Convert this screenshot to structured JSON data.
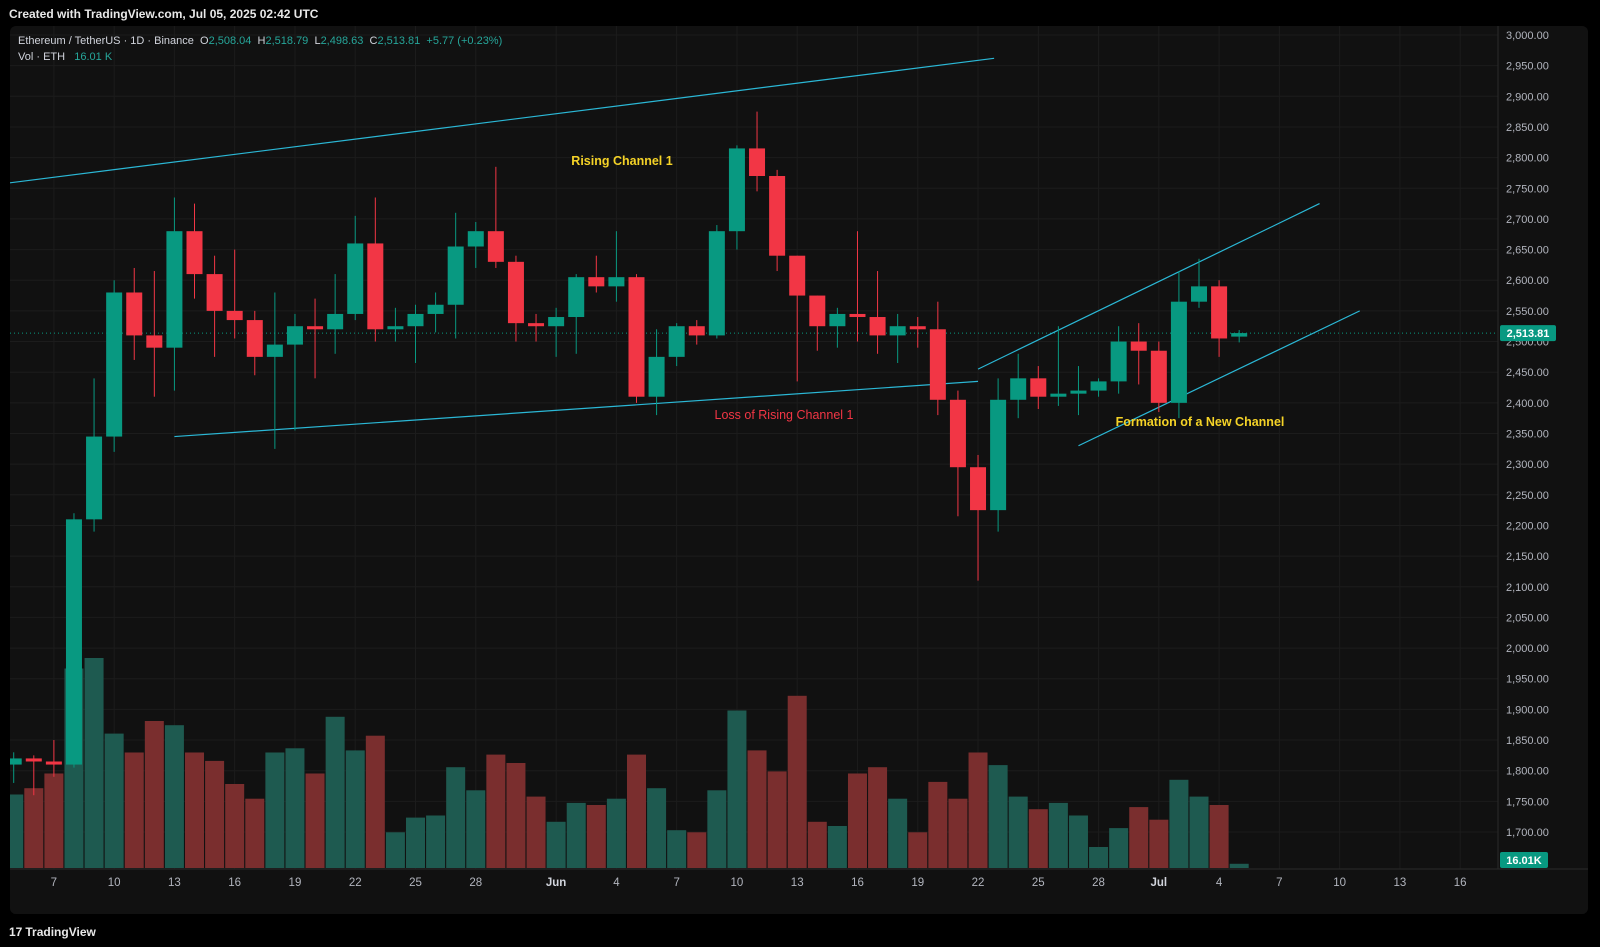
{
  "header": {
    "created_with": "Created with TradingView.com, Jul 05, 2025 02:42 UTC"
  },
  "legend": {
    "symbol": "Ethereum / TetherUS · 1D · Binance",
    "open_key": "O",
    "open": "2,508.04",
    "high_key": "H",
    "high": "2,518.79",
    "low_key": "L",
    "low": "2,498.63",
    "close_key": "C",
    "close": "2,513.81",
    "change": "+5.77 (+0.23%)",
    "vol_label": "Vol · ETH",
    "vol_value": "16.01 K"
  },
  "footer": {
    "logo_text": "TradingView",
    "logo_mark": "17"
  },
  "colors": {
    "up": "#089981",
    "down": "#f23645",
    "vol_up": "#1e5a50",
    "vol_down": "#7a2e2e",
    "channel": "#2bb8d6",
    "annotation_yellow": "#f5d327",
    "annotation_red": "#f23645",
    "background": "#111111",
    "price_tag": "#089981"
  },
  "chart_data": {
    "type": "candlestick",
    "price_axis": {
      "ylim": [
        1650,
        3020
      ],
      "ticks": [
        3000,
        2950,
        2900,
        2850,
        2800,
        2750,
        2700,
        2650,
        2600,
        2550,
        2500,
        2450,
        2400,
        2350,
        2300,
        2250,
        2200,
        2150,
        2100,
        2050,
        2000,
        1950,
        1900,
        1850,
        1800,
        1750,
        1700
      ],
      "tick_labels": [
        "3,000.00",
        "2,950.00",
        "2,900.00",
        "2,850.00",
        "2,800.00",
        "2,750.00",
        "2,700.00",
        "2,650.00",
        "2,600.00",
        "2,550.00",
        "2,500.00",
        "2,450.00",
        "2,400.00",
        "2,350.00",
        "2,300.00",
        "2,250.00",
        "2,200.00",
        "2,150.00",
        "2,100.00",
        "2,050.00",
        "2,000.00",
        "1,950.00",
        "1,900.00",
        "1,850.00",
        "1,800.00",
        "1,750.00",
        "1,700.00"
      ],
      "last_price": 2513.81,
      "last_price_label": "2,513.81",
      "grid": true
    },
    "time_axis": {
      "tick_labels": [
        "7",
        "10",
        "13",
        "16",
        "19",
        "22",
        "25",
        "28",
        "Jun",
        "4",
        "7",
        "10",
        "13",
        "16",
        "19",
        "22",
        "25",
        "28",
        "Jul",
        "4",
        "7",
        "10",
        "13",
        "16"
      ],
      "tick_index": [
        2,
        5,
        8,
        11,
        14,
        17,
        20,
        23,
        27,
        30,
        33,
        36,
        39,
        42,
        45,
        48,
        51,
        54,
        57,
        60,
        63,
        66,
        69,
        72
      ]
    },
    "candles": [
      {
        "date": "May 5",
        "o": 1810,
        "h": 1830,
        "l": 1780,
        "c": 1820
      },
      {
        "date": "May 6",
        "o": 1820,
        "h": 1825,
        "l": 1760,
        "c": 1815
      },
      {
        "date": "May 7",
        "o": 1815,
        "h": 1850,
        "l": 1790,
        "c": 1810
      },
      {
        "date": "May 8",
        "o": 1810,
        "h": 2220,
        "l": 1805,
        "c": 2210
      },
      {
        "date": "May 9",
        "o": 2210,
        "h": 2440,
        "l": 2190,
        "c": 2345
      },
      {
        "date": "May 10",
        "o": 2345,
        "h": 2600,
        "l": 2320,
        "c": 2580
      },
      {
        "date": "May 11",
        "o": 2580,
        "h": 2620,
        "l": 2470,
        "c": 2510
      },
      {
        "date": "May 12",
        "o": 2510,
        "h": 2615,
        "l": 2410,
        "c": 2490
      },
      {
        "date": "May 13",
        "o": 2490,
        "h": 2735,
        "l": 2420,
        "c": 2680
      },
      {
        "date": "May 14",
        "o": 2680,
        "h": 2725,
        "l": 2570,
        "c": 2610
      },
      {
        "date": "May 15",
        "o": 2610,
        "h": 2640,
        "l": 2475,
        "c": 2550
      },
      {
        "date": "May 16",
        "o": 2550,
        "h": 2650,
        "l": 2505,
        "c": 2535
      },
      {
        "date": "May 17",
        "o": 2535,
        "h": 2550,
        "l": 2445,
        "c": 2475
      },
      {
        "date": "May 18",
        "o": 2475,
        "h": 2580,
        "l": 2325,
        "c": 2495
      },
      {
        "date": "May 19",
        "o": 2495,
        "h": 2545,
        "l": 2355,
        "c": 2525
      },
      {
        "date": "May 20",
        "o": 2525,
        "h": 2570,
        "l": 2440,
        "c": 2520
      },
      {
        "date": "May 21",
        "o": 2520,
        "h": 2610,
        "l": 2480,
        "c": 2545
      },
      {
        "date": "May 22",
        "o": 2545,
        "h": 2705,
        "l": 2535,
        "c": 2660
      },
      {
        "date": "May 23",
        "o": 2660,
        "h": 2735,
        "l": 2500,
        "c": 2520
      },
      {
        "date": "May 24",
        "o": 2520,
        "h": 2555,
        "l": 2500,
        "c": 2525
      },
      {
        "date": "May 25",
        "o": 2525,
        "h": 2560,
        "l": 2465,
        "c": 2545
      },
      {
        "date": "May 26",
        "o": 2545,
        "h": 2580,
        "l": 2515,
        "c": 2560
      },
      {
        "date": "May 27",
        "o": 2560,
        "h": 2710,
        "l": 2505,
        "c": 2655
      },
      {
        "date": "May 28",
        "o": 2655,
        "h": 2695,
        "l": 2620,
        "c": 2680
      },
      {
        "date": "May 29",
        "o": 2680,
        "h": 2785,
        "l": 2620,
        "c": 2630
      },
      {
        "date": "May 30",
        "o": 2630,
        "h": 2640,
        "l": 2500,
        "c": 2530
      },
      {
        "date": "May 31",
        "o": 2530,
        "h": 2545,
        "l": 2500,
        "c": 2525
      },
      {
        "date": "Jun 1",
        "o": 2525,
        "h": 2555,
        "l": 2475,
        "c": 2540
      },
      {
        "date": "Jun 2",
        "o": 2540,
        "h": 2610,
        "l": 2480,
        "c": 2605
      },
      {
        "date": "Jun 3",
        "o": 2605,
        "h": 2640,
        "l": 2580,
        "c": 2590
      },
      {
        "date": "Jun 4",
        "o": 2590,
        "h": 2680,
        "l": 2565,
        "c": 2605
      },
      {
        "date": "Jun 5",
        "o": 2605,
        "h": 2610,
        "l": 2400,
        "c": 2410
      },
      {
        "date": "Jun 6",
        "o": 2410,
        "h": 2520,
        "l": 2380,
        "c": 2475
      },
      {
        "date": "Jun 7",
        "o": 2475,
        "h": 2530,
        "l": 2460,
        "c": 2525
      },
      {
        "date": "Jun 8",
        "o": 2525,
        "h": 2535,
        "l": 2495,
        "c": 2510
      },
      {
        "date": "Jun 9",
        "o": 2510,
        "h": 2690,
        "l": 2505,
        "c": 2680
      },
      {
        "date": "Jun 10",
        "o": 2680,
        "h": 2820,
        "l": 2650,
        "c": 2815
      },
      {
        "date": "Jun 11",
        "o": 2815,
        "h": 2875,
        "l": 2745,
        "c": 2770
      },
      {
        "date": "Jun 12",
        "o": 2770,
        "h": 2780,
        "l": 2615,
        "c": 2640
      },
      {
        "date": "Jun 13",
        "o": 2640,
        "h": 2640,
        "l": 2435,
        "c": 2575
      },
      {
        "date": "Jun 14",
        "o": 2575,
        "h": 2575,
        "l": 2485,
        "c": 2525
      },
      {
        "date": "Jun 15",
        "o": 2525,
        "h": 2555,
        "l": 2490,
        "c": 2545
      },
      {
        "date": "Jun 16",
        "o": 2545,
        "h": 2680,
        "l": 2500,
        "c": 2540
      },
      {
        "date": "Jun 17",
        "o": 2540,
        "h": 2615,
        "l": 2480,
        "c": 2510
      },
      {
        "date": "Jun 18",
        "o": 2510,
        "h": 2545,
        "l": 2465,
        "c": 2525
      },
      {
        "date": "Jun 19",
        "o": 2525,
        "h": 2540,
        "l": 2490,
        "c": 2520
      },
      {
        "date": "Jun 20",
        "o": 2520,
        "h": 2565,
        "l": 2380,
        "c": 2405
      },
      {
        "date": "Jun 21",
        "o": 2405,
        "h": 2420,
        "l": 2215,
        "c": 2295
      },
      {
        "date": "Jun 22",
        "o": 2295,
        "h": 2315,
        "l": 2110,
        "c": 2225
      },
      {
        "date": "Jun 23",
        "o": 2225,
        "h": 2440,
        "l": 2190,
        "c": 2405
      },
      {
        "date": "Jun 24",
        "o": 2405,
        "h": 2480,
        "l": 2375,
        "c": 2440
      },
      {
        "date": "Jun 25",
        "o": 2440,
        "h": 2460,
        "l": 2390,
        "c": 2410
      },
      {
        "date": "Jun 26",
        "o": 2410,
        "h": 2525,
        "l": 2395,
        "c": 2415
      },
      {
        "date": "Jun 27",
        "o": 2415,
        "h": 2460,
        "l": 2380,
        "c": 2420
      },
      {
        "date": "Jun 28",
        "o": 2420,
        "h": 2440,
        "l": 2410,
        "c": 2435
      },
      {
        "date": "Jun 29",
        "o": 2435,
        "h": 2525,
        "l": 2415,
        "c": 2500
      },
      {
        "date": "Jun 30",
        "o": 2500,
        "h": 2530,
        "l": 2430,
        "c": 2485
      },
      {
        "date": "Jul 1",
        "o": 2485,
        "h": 2500,
        "l": 2385,
        "c": 2400
      },
      {
        "date": "Jul 2",
        "o": 2400,
        "h": 2615,
        "l": 2375,
        "c": 2565
      },
      {
        "date": "Jul 3",
        "o": 2565,
        "h": 2635,
        "l": 2555,
        "c": 2590
      },
      {
        "date": "Jul 4",
        "o": 2590,
        "h": 2600,
        "l": 2475,
        "c": 2505
      },
      {
        "date": "Jul 5",
        "o": 2508.04,
        "h": 2518.79,
        "l": 2498.63,
        "c": 2513.81
      }
    ],
    "volume": {
      "label": "Vol · ETH",
      "last_label": "16.01K",
      "relative": [
        0.35,
        0.38,
        0.45,
        0.95,
        1.0,
        0.64,
        0.55,
        0.7,
        0.68,
        0.55,
        0.51,
        0.4,
        0.33,
        0.55,
        0.57,
        0.45,
        0.72,
        0.56,
        0.63,
        0.17,
        0.24,
        0.25,
        0.48,
        0.37,
        0.54,
        0.5,
        0.34,
        0.22,
        0.31,
        0.3,
        0.33,
        0.54,
        0.38,
        0.18,
        0.17,
        0.37,
        0.75,
        0.56,
        0.46,
        0.82,
        0.22,
        0.2,
        0.45,
        0.48,
        0.33,
        0.17,
        0.41,
        0.33,
        0.55,
        0.49,
        0.34,
        0.28,
        0.31,
        0.25,
        0.1,
        0.19,
        0.29,
        0.23,
        0.42,
        0.34,
        0.3,
        0.02
      ]
    },
    "annotations": [
      {
        "text": "Rising Channel 1",
        "color": "yellow"
      },
      {
        "text": "Loss of Rising Channel 1",
        "color": "red"
      },
      {
        "text": "Formation of a New Channel",
        "color": "yellow"
      }
    ],
    "trendlines": [
      {
        "name": "rising-channel-1-upper",
        "from": {
          "index": -0.4,
          "price": 2758
        },
        "to": {
          "index": 48.8,
          "price": 2962
        }
      },
      {
        "name": "rising-channel-1-lower",
        "from": {
          "index": 8,
          "price": 2345
        },
        "to": {
          "index": 48,
          "price": 2435
        }
      },
      {
        "name": "new-channel-upper",
        "from": {
          "index": 48,
          "price": 2455
        },
        "to": {
          "index": 65,
          "price": 2725
        }
      },
      {
        "name": "new-channel-lower",
        "from": {
          "index": 53,
          "price": 2330
        },
        "to": {
          "index": 67,
          "price": 2550
        }
      }
    ]
  }
}
